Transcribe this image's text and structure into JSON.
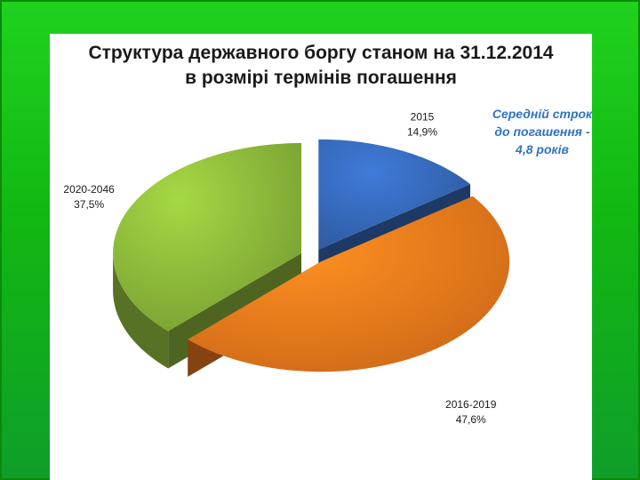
{
  "chart_data": {
    "type": "pie",
    "title_lines": [
      "Структура державного боргу станом на 31.12.2014",
      "в розмірі термінів погашення"
    ],
    "categories": [
      "2015",
      "2016-2019",
      "2020-2046"
    ],
    "values": [
      14.9,
      47.6,
      37.5
    ],
    "value_labels": [
      "14,9%",
      "47,6%",
      "37,5%"
    ],
    "colors": [
      "#3568b8",
      "#f07a1c",
      "#8cb83a"
    ],
    "annotation_lines": [
      "Середній строк",
      "до погашення -",
      "4,8 років"
    ],
    "legend": "none",
    "exploded": true
  },
  "colors": {
    "background": "#14b814",
    "panel": "#ffffff",
    "annotation": "#2f74c0"
  }
}
